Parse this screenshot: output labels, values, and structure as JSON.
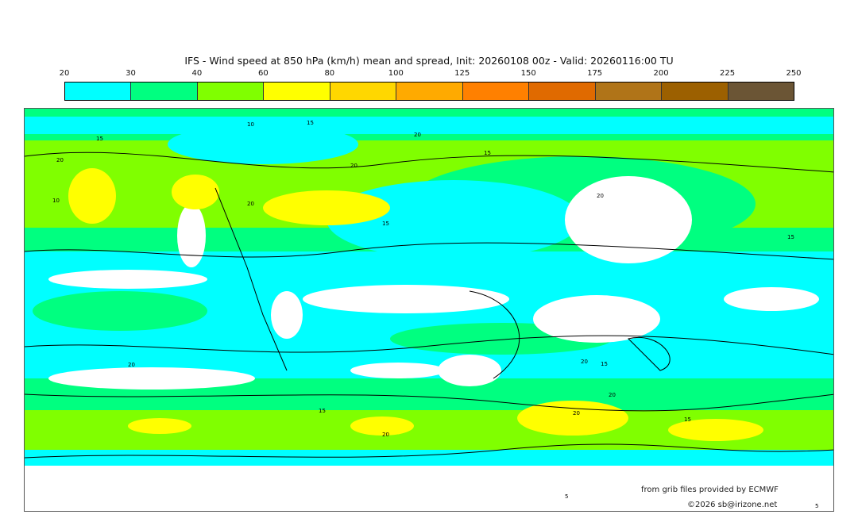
{
  "title": "IFS - Wind speed at 850 hPa (km/h) mean and spread, Init: 20260108 00z - Valid: 20260116:00 TU",
  "colorbar": {
    "ticks": [
      "20",
      "30",
      "40",
      "60",
      "80",
      "100",
      "125",
      "150",
      "175",
      "200",
      "225",
      "250"
    ],
    "colors": [
      "#00ffff",
      "#00ff80",
      "#80ff00",
      "#ffff00",
      "#ffd700",
      "#ffaa00",
      "#ff8000",
      "#e06a00",
      "#b07418",
      "#9c6000",
      "#6b5535"
    ]
  },
  "map": {
    "contour_labels": [
      "15",
      "20",
      "10",
      "15",
      "20",
      "20",
      "15",
      "20",
      "20",
      "15",
      "15",
      "10",
      "20",
      "20",
      "15",
      "20",
      "20",
      "15",
      "20",
      "15",
      "5",
      "5"
    ]
  },
  "credits": {
    "source": "from grib files provided by ECMWF",
    "copyright": "©2026 sb@irizone.net"
  }
}
